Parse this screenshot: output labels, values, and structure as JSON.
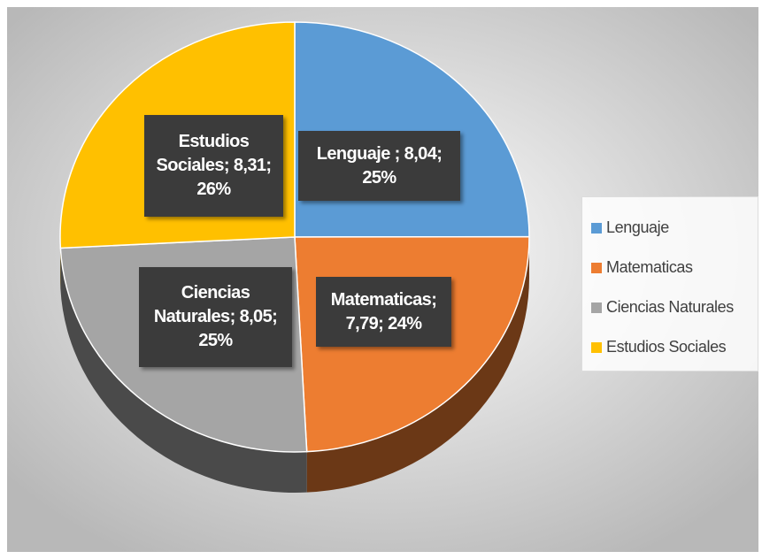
{
  "chart_data": {
    "type": "pie",
    "categories": [
      "Lenguaje",
      "Matematicas",
      "Ciencias Naturales",
      "Estudios Sociales"
    ],
    "values": [
      8.04,
      7.79,
      8.05,
      8.31
    ],
    "value_labels": [
      "Lenguaje ; 8,04; 25%",
      "Matematicas; 7,79; 24%",
      "Ciencias Naturales; 8,05; 25%",
      "Estudios Sociales; 8,31; 26%"
    ],
    "colors": [
      "#5b9bd5",
      "#ed7d31",
      "#a5a5a5",
      "#ffc000"
    ],
    "legend": "right"
  }
}
